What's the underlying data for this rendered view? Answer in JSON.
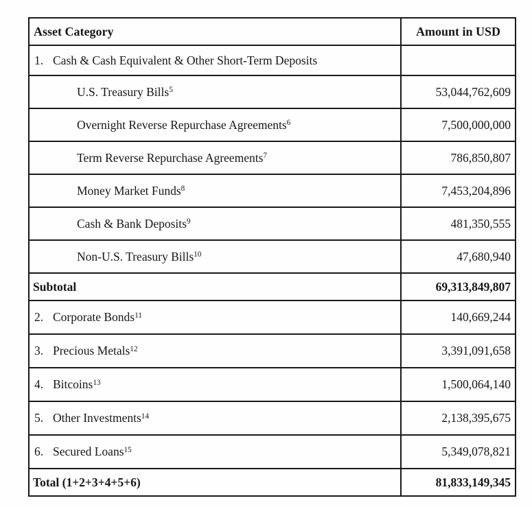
{
  "table": {
    "header": {
      "col1": "Asset Category",
      "col2": "Amount in USD"
    },
    "rows": [
      {
        "kind": "group1",
        "num": "1.",
        "label": "Cash & Cash Equivalent & Other Short-Term Deposits",
        "sup": "",
        "amount": ""
      },
      {
        "kind": "sub",
        "label": "U.S. Treasury Bills",
        "sup": "5",
        "amount": "53,044,762,609"
      },
      {
        "kind": "sub",
        "label": "Overnight Reverse Repurchase Agreements",
        "sup": "6",
        "amount": "7,500,000,000"
      },
      {
        "kind": "sub",
        "label": "Term Reverse Repurchase Agreements",
        "sup": "7",
        "amount": "786,850,807"
      },
      {
        "kind": "sub",
        "label": "Money Market Funds",
        "sup": "8",
        "amount": "7,453,204,896"
      },
      {
        "kind": "sub",
        "label": "Cash & Bank Deposits",
        "sup": "9",
        "amount": "481,350,555"
      },
      {
        "kind": "sub",
        "label": "Non-U.S. Treasury Bills",
        "sup": "10",
        "amount": "47,680,940"
      },
      {
        "kind": "summary",
        "label": "Subtotal",
        "sup": "",
        "amount": "69,313,849,807"
      },
      {
        "kind": "group",
        "num": "2.",
        "label": "Corporate Bonds",
        "sup": "11",
        "amount": "140,669,244"
      },
      {
        "kind": "group",
        "num": "3.",
        "label": "Precious Metals",
        "sup": "12",
        "amount": "3,391,091,658"
      },
      {
        "kind": "group",
        "num": "4.",
        "label": "Bitcoins",
        "sup": "13",
        "amount": "1,500,064,140"
      },
      {
        "kind": "group",
        "num": "5.",
        "label": "Other Investments",
        "sup": "14",
        "amount": "2,138,395,675"
      },
      {
        "kind": "group",
        "num": "6.",
        "label": "Secured Loans",
        "sup": "15",
        "amount": "5,349,078,821"
      },
      {
        "kind": "summary",
        "label": "Total (1+2+3+4+5+6)",
        "sup": "",
        "amount": "81,833,149,345"
      }
    ],
    "colors": {
      "border": "#191919",
      "text": "#161616",
      "background": "#fefefe"
    }
  }
}
